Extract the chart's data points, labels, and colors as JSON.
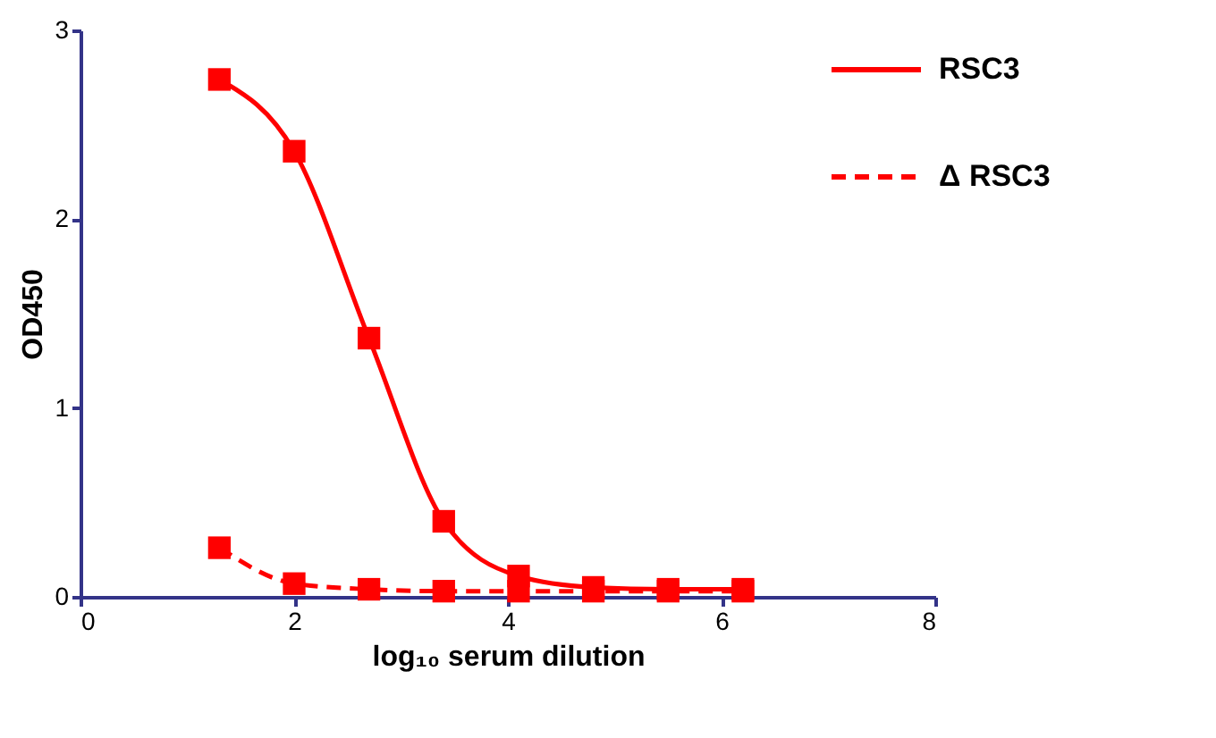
{
  "chart_data": {
    "type": "line",
    "xlabel": "log₁₀ serum dilution",
    "ylabel": "OD450",
    "x": [
      1.3,
      2.0,
      2.7,
      3.4,
      4.1,
      4.8,
      5.5,
      6.2
    ],
    "series": [
      {
        "name": "RSC3",
        "color": "#ff0000",
        "line_style": "solid",
        "values": [
          2.74,
          2.36,
          1.37,
          0.4,
          0.11,
          0.05,
          0.04,
          0.04
        ]
      },
      {
        "name": "Δ RSC3",
        "color": "#ff0000",
        "line_style": "dashed",
        "values": [
          0.26,
          0.07,
          0.04,
          0.03,
          0.03,
          0.03,
          0.03,
          0.03
        ]
      }
    ],
    "xlim": [
      0,
      8
    ],
    "xticks": [
      0,
      2,
      4,
      6,
      8
    ],
    "ylim": [
      0,
      3
    ],
    "yticks": [
      0,
      1,
      2,
      3
    ],
    "marker": "square",
    "grid": false,
    "legend": "top right"
  }
}
